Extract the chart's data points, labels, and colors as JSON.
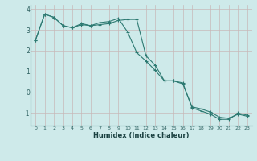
{
  "title": "",
  "xlabel": "Humidex (Indice chaleur)",
  "ylabel": "",
  "bg_color": "#ceeaea",
  "line_color": "#2d7a72",
  "grid_color": "#b8d8d5",
  "line1_x": [
    0,
    1,
    2,
    3,
    4,
    5,
    6,
    7,
    8,
    9,
    10,
    11,
    12,
    13,
    14,
    15,
    16,
    17,
    18,
    19,
    20,
    21,
    22,
    23
  ],
  "line1_y": [
    2.5,
    3.75,
    3.6,
    3.2,
    3.1,
    3.3,
    3.2,
    3.35,
    3.4,
    3.55,
    2.9,
    1.9,
    1.5,
    1.05,
    0.55,
    0.55,
    0.45,
    -0.75,
    -0.9,
    -1.05,
    -1.3,
    -1.3,
    -1.0,
    -1.1
  ],
  "line2_x": [
    0,
    1,
    2,
    3,
    4,
    5,
    6,
    7,
    8,
    9,
    10,
    11,
    12,
    13,
    14,
    15,
    16,
    17,
    18,
    19,
    20,
    21,
    22,
    23
  ],
  "line2_y": [
    2.5,
    3.75,
    3.6,
    3.2,
    3.1,
    3.25,
    3.2,
    3.25,
    3.3,
    3.45,
    3.5,
    3.5,
    1.75,
    1.3,
    0.55,
    0.55,
    0.4,
    -0.7,
    -0.8,
    -0.95,
    -1.2,
    -1.25,
    -1.05,
    -1.15
  ],
  "ylim": [
    -1.6,
    4.2
  ],
  "xlim": [
    -0.5,
    23.5
  ],
  "yticks": [
    -1,
    0,
    1,
    2,
    3,
    4
  ],
  "xticks": [
    0,
    1,
    2,
    3,
    4,
    5,
    6,
    7,
    8,
    9,
    10,
    11,
    12,
    13,
    14,
    15,
    16,
    17,
    18,
    19,
    20,
    21,
    22,
    23
  ]
}
